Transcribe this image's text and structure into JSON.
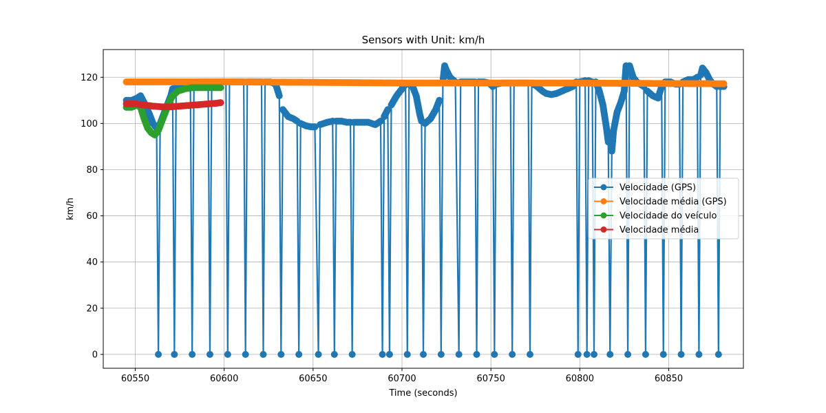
{
  "chart_data": {
    "type": "line",
    "title": "Sensors with Unit: km/h",
    "xlabel": "Time (seconds)",
    "ylabel": "km/h",
    "xlim": [
      60532,
      60892
    ],
    "ylim": [
      -6,
      132
    ],
    "xticks": [
      60550,
      60600,
      60650,
      60700,
      60750,
      60800,
      60850
    ],
    "yticks": [
      0,
      20,
      40,
      60,
      80,
      100,
      120
    ],
    "grid": true,
    "legend_position": "center-right",
    "series": [
      {
        "name": "Velocidade (GPS)",
        "color": "#1f77b4",
        "line": [
          [
            60545,
            110
          ],
          [
            60548,
            110
          ],
          [
            60551,
            111
          ],
          [
            60553,
            112
          ],
          [
            60555,
            109
          ],
          [
            60558,
            104
          ],
          [
            60560,
            100
          ],
          [
            60562,
            98
          ],
          [
            60563,
            0
          ],
          [
            60564,
            100
          ],
          [
            60566,
            104
          ],
          [
            60568,
            108
          ],
          [
            60570,
            112
          ],
          [
            60571,
            115
          ],
          [
            60572,
            0
          ],
          [
            60573,
            116
          ],
          [
            60576,
            117
          ],
          [
            60579,
            117
          ],
          [
            60581,
            117
          ],
          [
            60582,
            0
          ],
          [
            60583,
            117
          ],
          [
            60586,
            118
          ],
          [
            60589,
            118
          ],
          [
            60591,
            118
          ],
          [
            60592,
            0
          ],
          [
            60593,
            118
          ],
          [
            60596,
            118
          ],
          [
            60599,
            118
          ],
          [
            60601,
            118
          ],
          [
            60602,
            0
          ],
          [
            60603,
            118
          ],
          [
            60606,
            118
          ],
          [
            60609,
            118
          ],
          [
            60611,
            118
          ],
          [
            60612,
            0
          ],
          [
            60613,
            118
          ],
          [
            60616,
            118
          ],
          [
            60619,
            118
          ],
          [
            60621,
            118
          ],
          [
            60622,
            0
          ],
          [
            60623,
            118
          ],
          [
            60626,
            118
          ],
          [
            60629,
            117
          ],
          [
            60631,
            112
          ],
          [
            60632,
            0
          ],
          [
            60633,
            106
          ],
          [
            60636,
            103
          ],
          [
            60639,
            102
          ],
          [
            60641,
            101
          ],
          [
            60642,
            0
          ],
          [
            60643,
            100
          ],
          [
            60646,
            99
          ],
          [
            60649,
            98.5
          ],
          [
            60651,
            98.5
          ],
          [
            60653,
            0
          ],
          [
            60654,
            99.5
          ],
          [
            60658,
            100.5
          ],
          [
            60661,
            101
          ],
          [
            60662,
            0
          ],
          [
            60663,
            101
          ],
          [
            60666,
            101
          ],
          [
            60669,
            100.5
          ],
          [
            60671,
            100.5
          ],
          [
            60672,
            0
          ],
          [
            60673,
            100.5
          ],
          [
            60677,
            100.5
          ],
          [
            60681,
            100.5
          ],
          [
            60685,
            99.5
          ],
          [
            60688,
            101
          ],
          [
            60689,
            0
          ],
          [
            60690,
            103
          ],
          [
            60692,
            106
          ],
          [
            60693,
            0
          ],
          [
            60694,
            108
          ],
          [
            60697,
            112
          ],
          [
            60700,
            115
          ],
          [
            60702,
            117
          ],
          [
            60703,
            0
          ],
          [
            60704,
            117
          ],
          [
            60706,
            116
          ],
          [
            60708,
            112
          ],
          [
            60710,
            104
          ],
          [
            60711,
            101
          ],
          [
            60712,
            0
          ],
          [
            60713,
            100
          ],
          [
            60716,
            102
          ],
          [
            60719,
            106
          ],
          [
            60721,
            110
          ],
          [
            60722,
            0
          ],
          [
            60723,
            118
          ],
          [
            60724,
            125
          ],
          [
            60725,
            123
          ],
          [
            60727,
            120
          ],
          [
            60730,
            118
          ],
          [
            60732,
            0
          ],
          [
            60733,
            118
          ],
          [
            60736,
            118
          ],
          [
            60739,
            118
          ],
          [
            60741,
            118
          ],
          [
            60742,
            0
          ],
          [
            60743,
            118
          ],
          [
            60746,
            118
          ],
          [
            60749,
            117.5
          ],
          [
            60751,
            116
          ],
          [
            60752,
            0
          ],
          [
            60753,
            117
          ],
          [
            60756,
            117.5
          ],
          [
            60759,
            117.5
          ],
          [
            60761,
            117.5
          ],
          [
            60762,
            0
          ],
          [
            60763,
            117.5
          ],
          [
            60766,
            117.5
          ],
          [
            60769,
            117.5
          ],
          [
            60771,
            117.5
          ],
          [
            60772,
            0
          ],
          [
            60773,
            117.5
          ],
          [
            60776,
            116
          ],
          [
            60779,
            114
          ],
          [
            60781,
            113
          ],
          [
            60784,
            112.5
          ],
          [
            60787,
            113
          ],
          [
            60790,
            114
          ],
          [
            60793,
            115
          ],
          [
            60796,
            116
          ],
          [
            60798,
            118
          ],
          [
            60799,
            0
          ],
          [
            60800,
            118
          ],
          [
            60803,
            118.5
          ],
          [
            60804,
            0
          ],
          [
            60805,
            118.5
          ],
          [
            60807,
            118
          ],
          [
            60808,
            0
          ],
          [
            60809,
            118
          ],
          [
            60811,
            114
          ],
          [
            60813,
            108
          ],
          [
            60815,
            98
          ],
          [
            60816,
            92
          ],
          [
            60817,
            0
          ],
          [
            60818,
            88
          ],
          [
            60819,
            97
          ],
          [
            60821,
            105
          ],
          [
            60823,
            109
          ],
          [
            60825,
            114
          ],
          [
            60826,
            125
          ],
          [
            60827,
            0
          ],
          [
            60828,
            125
          ],
          [
            60830,
            120
          ],
          [
            60832,
            118
          ],
          [
            60834,
            117
          ],
          [
            60836,
            116
          ],
          [
            60837,
            0
          ],
          [
            60838,
            114
          ],
          [
            60841,
            112
          ],
          [
            60844,
            111
          ],
          [
            60846,
            116
          ],
          [
            60847,
            0
          ],
          [
            60848,
            118
          ],
          [
            60851,
            118
          ],
          [
            60854,
            117
          ],
          [
            60856,
            117
          ],
          [
            60857,
            0
          ],
          [
            60858,
            118
          ],
          [
            60861,
            119
          ],
          [
            60864,
            119
          ],
          [
            60866,
            120
          ],
          [
            60867,
            0
          ],
          [
            60868,
            121
          ],
          [
            60869,
            124
          ],
          [
            60871,
            122
          ],
          [
            60873,
            119
          ],
          [
            60875,
            117
          ],
          [
            60877,
            116
          ],
          [
            60878,
            0
          ],
          [
            60879,
            116
          ],
          [
            60881,
            116
          ]
        ]
      },
      {
        "name": "Velocidade média (GPS)",
        "color": "#ff7f0e",
        "line": [
          [
            60545,
            118
          ],
          [
            60600,
            118
          ],
          [
            60650,
            117.8
          ],
          [
            60700,
            117.5
          ],
          [
            60750,
            117.5
          ],
          [
            60800,
            117.5
          ],
          [
            60850,
            117.3
          ],
          [
            60881,
            117.2
          ]
        ]
      },
      {
        "name": "Velocidade do veículo",
        "color": "#2ca02c",
        "line": [
          [
            60545,
            107
          ],
          [
            60548,
            107
          ],
          [
            60551,
            108
          ],
          [
            60553,
            107
          ],
          [
            60555,
            102
          ],
          [
            60557,
            98
          ],
          [
            60559,
            96
          ],
          [
            60561,
            95
          ],
          [
            60563,
            97
          ],
          [
            60565,
            101
          ],
          [
            60567,
            105
          ],
          [
            60569,
            109
          ],
          [
            60571,
            112
          ],
          [
            60574,
            114
          ],
          [
            60578,
            115
          ],
          [
            60582,
            115.5
          ],
          [
            60586,
            115.5
          ],
          [
            60590,
            115.5
          ],
          [
            60594,
            115.5
          ],
          [
            60598,
            115.5
          ]
        ]
      },
      {
        "name": "Velocidade média",
        "color": "#d62728",
        "line": [
          [
            60545,
            108.5
          ],
          [
            60550,
            108.5
          ],
          [
            60555,
            108
          ],
          [
            60560,
            107.5
          ],
          [
            60565,
            107.2
          ],
          [
            60570,
            107.2
          ],
          [
            60575,
            107.5
          ],
          [
            60580,
            107.8
          ],
          [
            60585,
            108.1
          ],
          [
            60590,
            108.4
          ],
          [
            60595,
            108.7
          ],
          [
            60598,
            109
          ]
        ]
      }
    ]
  }
}
